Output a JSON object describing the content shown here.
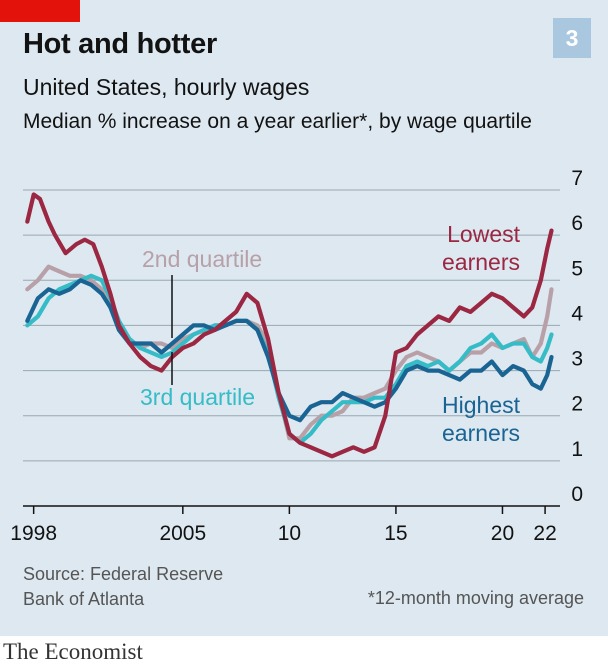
{
  "header": {
    "title": "Hot and hotter",
    "subtitle": "United States, hourly wages",
    "description": "Median % increase on a year earlier*, by wage quartile",
    "chart_number": "3"
  },
  "footer": {
    "source_line1": "Source: Federal Reserve",
    "source_line2": "Bank of Atlanta",
    "footnote": "*12-month moving average",
    "brand": "The Economist"
  },
  "colors": {
    "background": "#dde8f0",
    "lowest": "#9b2742",
    "second": "#b8a0a8",
    "third": "#35bcc6",
    "highest": "#1a6493",
    "grid": "#9aa8b2",
    "red_tag": "#e3120b"
  },
  "chart_data": {
    "type": "line",
    "ylim": [
      0,
      7
    ],
    "yticks": [
      "0",
      "1",
      "2",
      "3",
      "4",
      "5",
      "6",
      "7"
    ],
    "xlim": [
      1997.5,
      2022.7
    ],
    "xticks": [
      {
        "value": 1998,
        "label": "1998"
      },
      {
        "value": 2005,
        "label": "2005"
      },
      {
        "value": 2010,
        "label": "10"
      },
      {
        "value": 2015,
        "label": "15"
      },
      {
        "value": 2020,
        "label": "20"
      },
      {
        "value": 2022,
        "label": "22"
      }
    ],
    "grid": true,
    "series": [
      {
        "name": "Lowest earners",
        "label_lines": [
          "Lowest",
          "earners"
        ],
        "color_key": "lowest",
        "x": [
          1997.7,
          1998.0,
          1998.3,
          1998.7,
          1999.0,
          1999.5,
          2000.0,
          2000.4,
          2000.8,
          2001.2,
          2001.6,
          2002.0,
          2002.5,
          2003.0,
          2003.5,
          2004.0,
          2004.5,
          2005.0,
          2005.5,
          2006.0,
          2006.5,
          2007.0,
          2007.5,
          2008.0,
          2008.5,
          2009.0,
          2009.5,
          2010.0,
          2010.5,
          2011.0,
          2011.5,
          2012.0,
          2012.5,
          2013.0,
          2013.5,
          2014.0,
          2014.5,
          2015.0,
          2015.5,
          2016.0,
          2016.5,
          2017.0,
          2017.5,
          2018.0,
          2018.5,
          2019.0,
          2019.5,
          2020.0,
          2020.5,
          2021.0,
          2021.4,
          2021.8,
          2022.1,
          2022.3
        ],
        "y": [
          6.3,
          6.9,
          6.8,
          6.3,
          6.0,
          5.6,
          5.8,
          5.9,
          5.8,
          5.3,
          4.7,
          4.0,
          3.6,
          3.3,
          3.1,
          3.0,
          3.3,
          3.5,
          3.6,
          3.8,
          3.9,
          4.1,
          4.3,
          4.7,
          4.5,
          3.7,
          2.5,
          1.6,
          1.4,
          1.3,
          1.2,
          1.1,
          1.2,
          1.3,
          1.2,
          1.3,
          2.0,
          3.4,
          3.5,
          3.8,
          4.0,
          4.2,
          4.1,
          4.4,
          4.3,
          4.5,
          4.7,
          4.6,
          4.4,
          4.2,
          4.4,
          5.0,
          5.7,
          6.1
        ]
      },
      {
        "name": "2nd quartile",
        "label_lines": [
          "2nd quartile"
        ],
        "color_key": "second",
        "x": [
          1997.7,
          1998.2,
          1998.7,
          1999.2,
          1999.7,
          2000.2,
          2000.7,
          2001.2,
          2001.6,
          2002.0,
          2002.5,
          2003.0,
          2003.5,
          2004.0,
          2004.5,
          2005.0,
          2005.5,
          2006.0,
          2006.5,
          2007.0,
          2007.5,
          2008.0,
          2008.5,
          2009.0,
          2009.5,
          2010.0,
          2010.5,
          2011.0,
          2011.5,
          2012.0,
          2012.5,
          2013.0,
          2013.5,
          2014.0,
          2014.5,
          2015.0,
          2015.5,
          2016.0,
          2016.5,
          2017.0,
          2017.5,
          2018.0,
          2018.5,
          2019.0,
          2019.5,
          2020.0,
          2020.5,
          2021.0,
          2021.4,
          2021.8,
          2022.1,
          2022.3
        ],
        "y": [
          4.8,
          5.0,
          5.3,
          5.2,
          5.1,
          5.1,
          5.0,
          4.8,
          4.4,
          4.0,
          3.7,
          3.5,
          3.6,
          3.6,
          3.5,
          3.7,
          3.8,
          3.9,
          4.0,
          4.0,
          4.1,
          4.1,
          4.0,
          3.6,
          2.5,
          1.5,
          1.5,
          1.8,
          2.0,
          2.0,
          2.1,
          2.4,
          2.4,
          2.5,
          2.6,
          3.0,
          3.3,
          3.4,
          3.3,
          3.2,
          3.0,
          3.2,
          3.4,
          3.4,
          3.6,
          3.5,
          3.6,
          3.7,
          3.3,
          3.6,
          4.2,
          4.8
        ]
      },
      {
        "name": "3rd quartile",
        "label_lines": [
          "3rd quartile"
        ],
        "color_key": "third",
        "x": [
          1997.7,
          1998.2,
          1998.7,
          1999.2,
          1999.7,
          2000.2,
          2000.7,
          2001.2,
          2001.6,
          2002.0,
          2002.5,
          2003.0,
          2003.5,
          2004.0,
          2004.5,
          2005.0,
          2005.5,
          2006.0,
          2006.5,
          2007.0,
          2007.5,
          2008.0,
          2008.5,
          2009.0,
          2009.5,
          2010.0,
          2010.5,
          2011.0,
          2011.5,
          2012.0,
          2012.5,
          2013.0,
          2013.5,
          2014.0,
          2014.5,
          2015.0,
          2015.5,
          2016.0,
          2016.5,
          2017.0,
          2017.5,
          2018.0,
          2018.5,
          2019.0,
          2019.5,
          2020.0,
          2020.5,
          2021.0,
          2021.4,
          2021.8,
          2022.1,
          2022.3
        ],
        "y": [
          4.0,
          4.2,
          4.6,
          4.8,
          4.9,
          5.0,
          5.1,
          5.0,
          4.6,
          4.1,
          3.7,
          3.5,
          3.4,
          3.3,
          3.4,
          3.6,
          3.8,
          3.9,
          4.0,
          4.0,
          4.1,
          4.1,
          3.9,
          3.4,
          2.4,
          1.6,
          1.4,
          1.6,
          1.9,
          2.1,
          2.3,
          2.3,
          2.3,
          2.4,
          2.4,
          2.7,
          3.1,
          3.2,
          3.1,
          3.2,
          3.0,
          3.2,
          3.5,
          3.6,
          3.8,
          3.5,
          3.6,
          3.6,
          3.3,
          3.2,
          3.5,
          3.8
        ]
      },
      {
        "name": "Highest earners",
        "label_lines": [
          "Highest",
          "earners"
        ],
        "color_key": "highest",
        "x": [
          1997.7,
          1998.2,
          1998.7,
          1999.2,
          1999.7,
          2000.2,
          2000.7,
          2001.2,
          2001.6,
          2002.0,
          2002.5,
          2003.0,
          2003.5,
          2004.0,
          2004.5,
          2005.0,
          2005.5,
          2006.0,
          2006.5,
          2007.0,
          2007.5,
          2008.0,
          2008.5,
          2009.0,
          2009.5,
          2010.0,
          2010.5,
          2011.0,
          2011.5,
          2012.0,
          2012.5,
          2013.0,
          2013.5,
          2014.0,
          2014.5,
          2015.0,
          2015.5,
          2016.0,
          2016.5,
          2017.0,
          2017.5,
          2018.0,
          2018.5,
          2019.0,
          2019.5,
          2020.0,
          2020.5,
          2021.0,
          2021.4,
          2021.8,
          2022.1,
          2022.3
        ],
        "y": [
          4.1,
          4.6,
          4.8,
          4.7,
          4.8,
          5.0,
          4.9,
          4.7,
          4.4,
          3.9,
          3.6,
          3.6,
          3.6,
          3.4,
          3.6,
          3.8,
          4.0,
          4.0,
          3.9,
          4.0,
          4.1,
          4.1,
          3.9,
          3.3,
          2.5,
          2.0,
          1.9,
          2.2,
          2.3,
          2.3,
          2.5,
          2.4,
          2.3,
          2.2,
          2.3,
          2.6,
          3.0,
          3.1,
          3.0,
          3.0,
          2.9,
          2.8,
          3.0,
          3.0,
          3.2,
          2.9,
          3.1,
          3.0,
          2.7,
          2.6,
          2.9,
          3.3
        ]
      }
    ]
  }
}
